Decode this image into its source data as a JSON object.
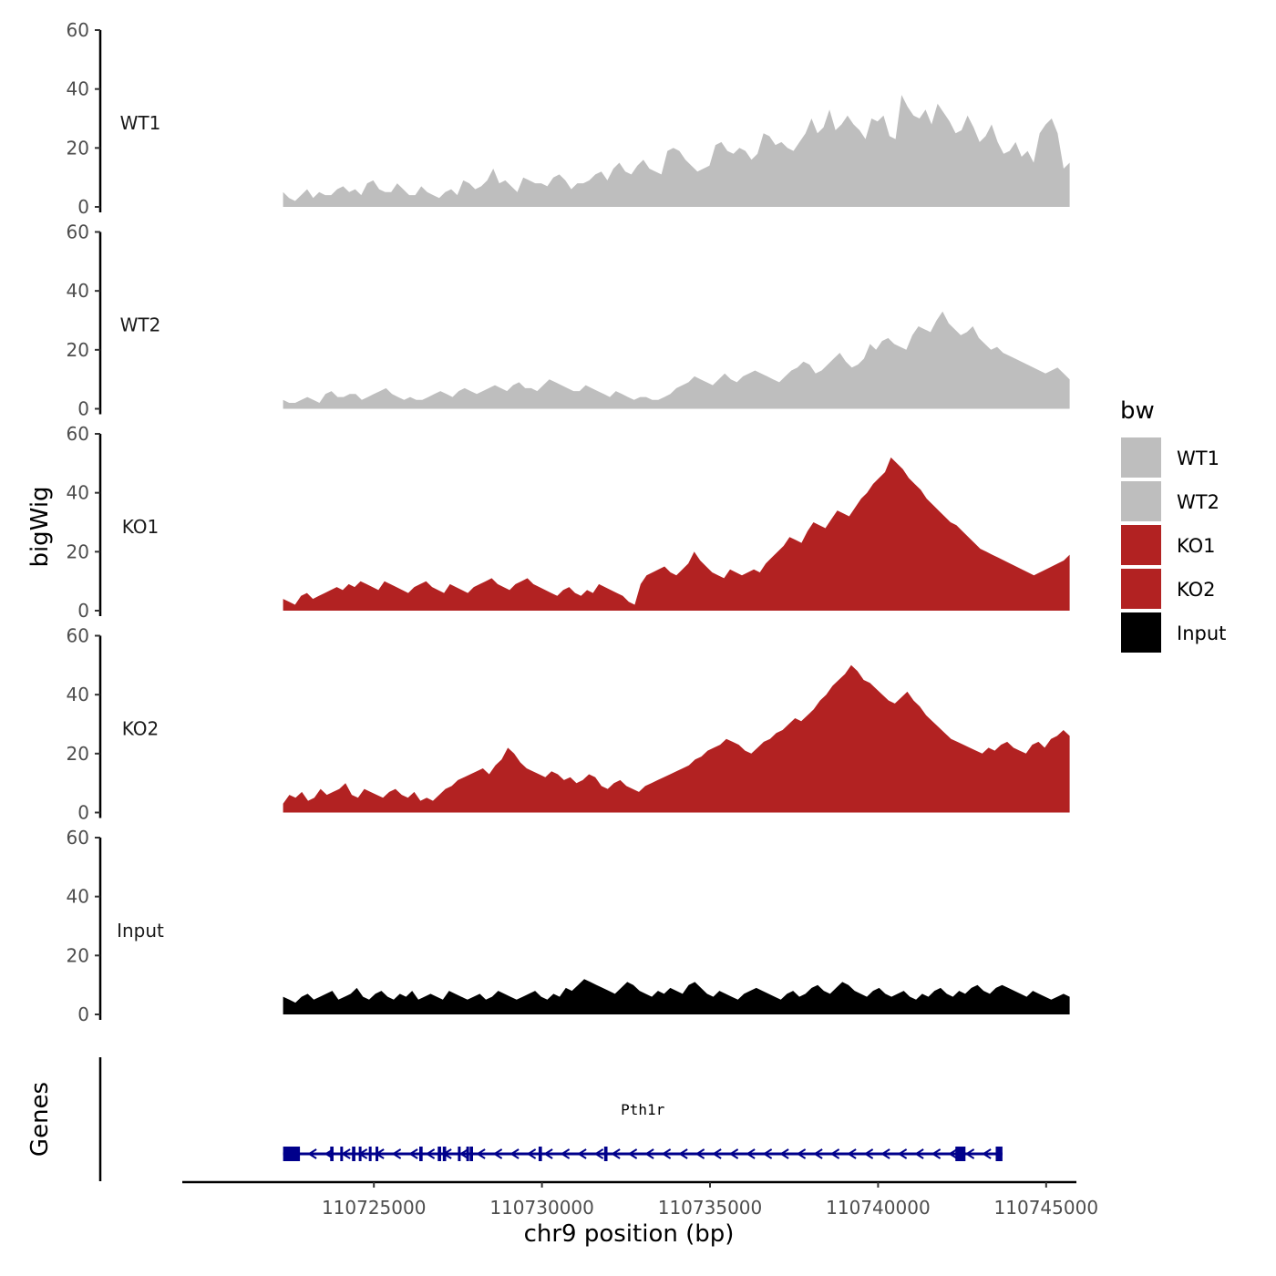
{
  "chart_data": {
    "type": "area",
    "xlabel": "chr9 position (bp)",
    "ylabel": "bigWig",
    "genes_label": "Genes",
    "xlim": [
      110719300,
      110745900
    ],
    "region_start": 110722300,
    "region_end": 110745700,
    "x_ticks": [
      {
        "value": 110725000,
        "label": "110725000"
      },
      {
        "value": 110730000,
        "label": "110730000"
      },
      {
        "value": 110735000,
        "label": "110735000"
      },
      {
        "value": 110740000,
        "label": "110740000"
      },
      {
        "value": 110745000,
        "label": "110745000"
      }
    ],
    "y_ticks": [
      {
        "value": 0,
        "label": "0"
      },
      {
        "value": 20,
        "label": "20"
      },
      {
        "value": 40,
        "label": "40"
      },
      {
        "value": 60,
        "label": "60"
      }
    ],
    "ylim": [
      0,
      60
    ],
    "series": [
      {
        "name": "WT1",
        "label": "WT1",
        "color": "#BEBEBE",
        "values": [
          5,
          3,
          2,
          4,
          6,
          3,
          5,
          4,
          4,
          6,
          7,
          5,
          6,
          4,
          8,
          9,
          6,
          5,
          5,
          8,
          6,
          4,
          4,
          7,
          5,
          4,
          3,
          5,
          6,
          4,
          9,
          8,
          6,
          7,
          9,
          13,
          8,
          9,
          7,
          5,
          10,
          9,
          8,
          8,
          7,
          10,
          11,
          9,
          6,
          8,
          8,
          9,
          11,
          12,
          9,
          13,
          15,
          12,
          11,
          14,
          16,
          13,
          12,
          11,
          19,
          20,
          19,
          16,
          14,
          12,
          13,
          14,
          21,
          22,
          19,
          18,
          20,
          19,
          16,
          18,
          25,
          24,
          21,
          22,
          20,
          19,
          22,
          25,
          30,
          25,
          27,
          33,
          26,
          28,
          31,
          28,
          26,
          23,
          30,
          29,
          31,
          24,
          23,
          38,
          34,
          31,
          30,
          33,
          28,
          35,
          32,
          29,
          25,
          26,
          31,
          27,
          22,
          24,
          28,
          22,
          18,
          19,
          22,
          17,
          19,
          15,
          25,
          28,
          30,
          25,
          13,
          15
        ]
      },
      {
        "name": "WT2",
        "label": "WT2",
        "color": "#BEBEBE",
        "values": [
          3,
          2,
          2,
          3,
          4,
          3,
          2,
          5,
          6,
          4,
          4,
          5,
          5,
          3,
          4,
          5,
          6,
          7,
          5,
          4,
          3,
          4,
          3,
          3,
          4,
          5,
          6,
          5,
          4,
          6,
          7,
          6,
          5,
          6,
          7,
          8,
          7,
          6,
          8,
          9,
          7,
          7,
          6,
          8,
          10,
          9,
          8,
          7,
          6,
          6,
          8,
          7,
          6,
          5,
          4,
          6,
          5,
          4,
          3,
          4,
          4,
          3,
          3,
          4,
          5,
          7,
          8,
          9,
          11,
          10,
          9,
          8,
          10,
          12,
          10,
          9,
          11,
          12,
          13,
          12,
          11,
          10,
          9,
          11,
          13,
          14,
          16,
          15,
          12,
          13,
          15,
          17,
          19,
          16,
          14,
          15,
          17,
          22,
          20,
          23,
          24,
          22,
          21,
          20,
          25,
          28,
          27,
          26,
          30,
          33,
          29,
          27,
          25,
          26,
          28,
          24,
          22,
          20,
          21,
          19,
          18,
          17,
          16,
          15,
          14,
          13,
          12,
          13,
          14,
          12,
          10
        ]
      },
      {
        "name": "KO1",
        "label": "KO1",
        "color": "#B22222",
        "values": [
          4,
          3,
          2,
          5,
          6,
          4,
          5,
          6,
          7,
          8,
          7,
          9,
          8,
          10,
          9,
          8,
          7,
          10,
          9,
          8,
          7,
          6,
          8,
          9,
          10,
          8,
          7,
          6,
          9,
          8,
          7,
          6,
          8,
          9,
          10,
          11,
          9,
          8,
          7,
          9,
          10,
          11,
          9,
          8,
          7,
          6,
          5,
          7,
          8,
          6,
          5,
          7,
          6,
          9,
          8,
          7,
          6,
          5,
          3,
          2,
          9,
          12,
          13,
          14,
          15,
          13,
          12,
          14,
          16,
          20,
          17,
          15,
          13,
          12,
          11,
          14,
          13,
          12,
          13,
          14,
          13,
          16,
          18,
          20,
          22,
          25,
          24,
          23,
          27,
          30,
          29,
          28,
          31,
          34,
          33,
          32,
          35,
          38,
          40,
          43,
          45,
          47,
          52,
          50,
          48,
          45,
          43,
          41,
          38,
          36,
          34,
          32,
          30,
          29,
          27,
          25,
          23,
          21,
          20,
          19,
          18,
          17,
          16,
          15,
          14,
          13,
          12,
          13,
          14,
          15,
          16,
          17,
          19
        ]
      },
      {
        "name": "KO2",
        "label": "KO2",
        "color": "#B22222",
        "values": [
          3,
          6,
          5,
          7,
          4,
          5,
          8,
          6,
          7,
          8,
          10,
          6,
          5,
          8,
          7,
          6,
          5,
          7,
          8,
          6,
          5,
          7,
          4,
          5,
          4,
          6,
          8,
          9,
          11,
          12,
          13,
          14,
          15,
          13,
          16,
          18,
          22,
          20,
          17,
          15,
          14,
          13,
          12,
          14,
          13,
          11,
          12,
          10,
          11,
          13,
          12,
          9,
          8,
          10,
          11,
          9,
          8,
          7,
          9,
          10,
          11,
          12,
          13,
          14,
          15,
          16,
          18,
          19,
          21,
          22,
          23,
          25,
          24,
          23,
          21,
          20,
          22,
          24,
          25,
          27,
          28,
          30,
          32,
          31,
          33,
          35,
          38,
          40,
          43,
          45,
          47,
          50,
          48,
          45,
          44,
          42,
          40,
          38,
          37,
          39,
          41,
          38,
          36,
          33,
          31,
          29,
          27,
          25,
          24,
          23,
          22,
          21,
          20,
          22,
          21,
          23,
          24,
          22,
          21,
          20,
          23,
          24,
          22,
          25,
          26,
          28,
          26
        ]
      },
      {
        "name": "Input",
        "label": "Input",
        "color": "#000000",
        "values": [
          6,
          5,
          4,
          6,
          7,
          5,
          6,
          7,
          8,
          5,
          6,
          7,
          9,
          6,
          5,
          7,
          8,
          6,
          5,
          7,
          6,
          8,
          5,
          6,
          7,
          6,
          5,
          8,
          7,
          6,
          5,
          6,
          7,
          5,
          6,
          8,
          7,
          6,
          5,
          6,
          7,
          8,
          6,
          5,
          7,
          6,
          9,
          8,
          10,
          12,
          11,
          10,
          9,
          8,
          7,
          9,
          11,
          10,
          8,
          7,
          6,
          8,
          7,
          9,
          8,
          7,
          10,
          11,
          9,
          7,
          6,
          8,
          7,
          6,
          5,
          7,
          8,
          9,
          8,
          7,
          6,
          5,
          7,
          8,
          6,
          7,
          9,
          10,
          8,
          7,
          9,
          11,
          10,
          8,
          7,
          6,
          8,
          9,
          7,
          6,
          7,
          8,
          6,
          5,
          7,
          6,
          8,
          9,
          7,
          6,
          8,
          7,
          9,
          10,
          8,
          7,
          9,
          10,
          9,
          8,
          7,
          6,
          8,
          7,
          6,
          5,
          6,
          7,
          6
        ]
      }
    ],
    "legend": {
      "title": "bw",
      "entries": [
        {
          "label": "WT1",
          "color": "#BEBEBE"
        },
        {
          "label": "WT2",
          "color": "#BEBEBE"
        },
        {
          "label": "KO1",
          "color": "#B22222"
        },
        {
          "label": "KO2",
          "color": "#B22222"
        },
        {
          "label": "Input",
          "color": "#000000"
        }
      ]
    },
    "gene": {
      "name": "Pth1r",
      "strand": "-",
      "color": "#00008B",
      "start": 110722300,
      "end": 110743700,
      "exons": [
        [
          110722300,
          110722800
        ],
        [
          110723700,
          110723800
        ],
        [
          110724000,
          110724050
        ],
        [
          110724350,
          110724450
        ],
        [
          110724550,
          110724600
        ],
        [
          110724850,
          110724900
        ],
        [
          110725050,
          110725100
        ],
        [
          110726350,
          110726450
        ],
        [
          110726900,
          110727000
        ],
        [
          110727050,
          110727150
        ],
        [
          110727500,
          110727550
        ],
        [
          110727750,
          110727800
        ],
        [
          110727850,
          110727950
        ],
        [
          110729900,
          110730000
        ],
        [
          110731850,
          110731950
        ],
        [
          110742300,
          110742600
        ],
        [
          110743500,
          110743700
        ]
      ]
    }
  }
}
